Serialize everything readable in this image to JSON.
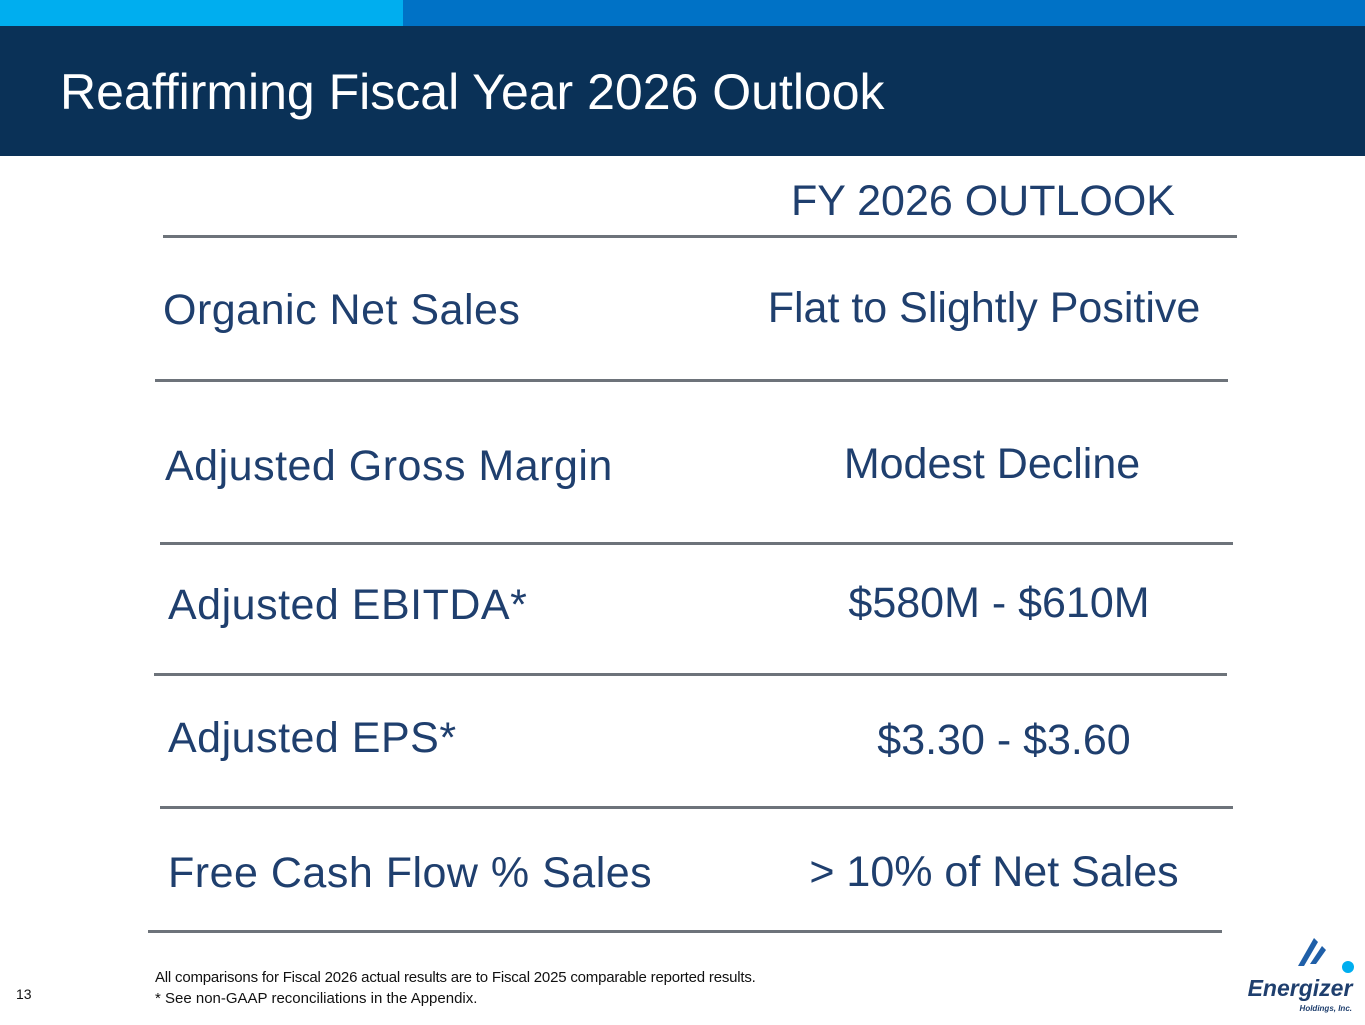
{
  "slide": {
    "title": "Reaffirming Fiscal Year 2026 Outlook",
    "column_header": "FY 2026 OUTLOOK",
    "rows": [
      {
        "label": "Organic Net Sales",
        "value": "Flat to Slightly Positive"
      },
      {
        "label": "Adjusted Gross Margin",
        "value": "Modest Decline"
      },
      {
        "label": "Adjusted EBITDA*",
        "value": "$580M - $610M"
      },
      {
        "label": "Adjusted EPS*",
        "value": "$3.30 - $3.60"
      },
      {
        "label": "Free Cash Flow % Sales",
        "value": "> 10% of Net Sales"
      }
    ],
    "footnotes": [
      "All comparisons for Fiscal 2026 actual results are to Fiscal 2025 comparable reported results.",
      "* See non-GAAP reconciliations in the Appendix."
    ],
    "page_number": "13"
  },
  "logo": {
    "name": "Energizer",
    "tagline": "Holdings, Inc.",
    "icon": "energizer-logo-icon"
  },
  "colors": {
    "title_band": "#0a3157",
    "accent_light": "#00aeef",
    "accent_dark": "#0072c6",
    "text_primary": "#1f3f6e",
    "rule": "#6d737a"
  }
}
